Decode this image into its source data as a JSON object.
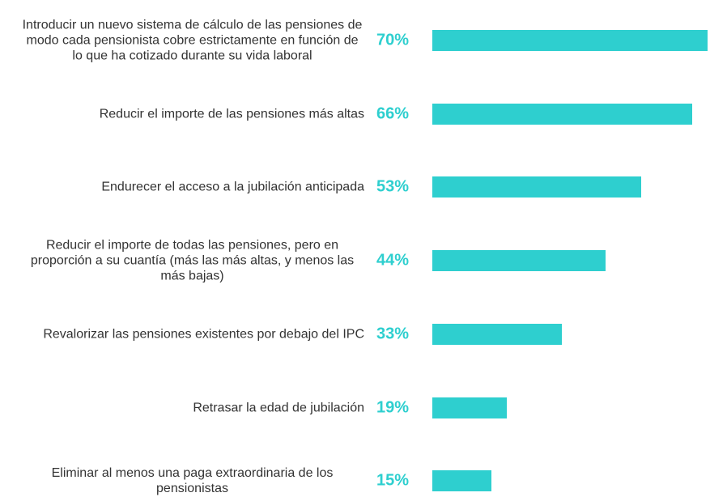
{
  "chart_data": {
    "type": "bar",
    "orientation": "horizontal",
    "color": "#2ecfcf",
    "categories": [
      "Introducir un nuevo sistema de cálculo de las pensiones de modo cada pensionista cobre estrictamente en función de lo que ha cotizado durante su vida laboral",
      "Reducir el importe de las pensiones más altas",
      "Endurecer el acceso a la jubilación anticipada",
      "Reducir el importe de todas las pensiones, pero en proporción a su cuantía (más las más altas, y menos las más bajas)",
      "Revalorizar las pensiones existentes por debajo del IPC",
      "Retrasar la edad de jubilación",
      "Eliminar al menos una paga extraordinaria de los pensionistas"
    ],
    "values": [
      70,
      66,
      53,
      44,
      33,
      19,
      15
    ],
    "value_labels": [
      "70%",
      "66%",
      "53%",
      "44%",
      "33%",
      "19%",
      "15%"
    ]
  }
}
